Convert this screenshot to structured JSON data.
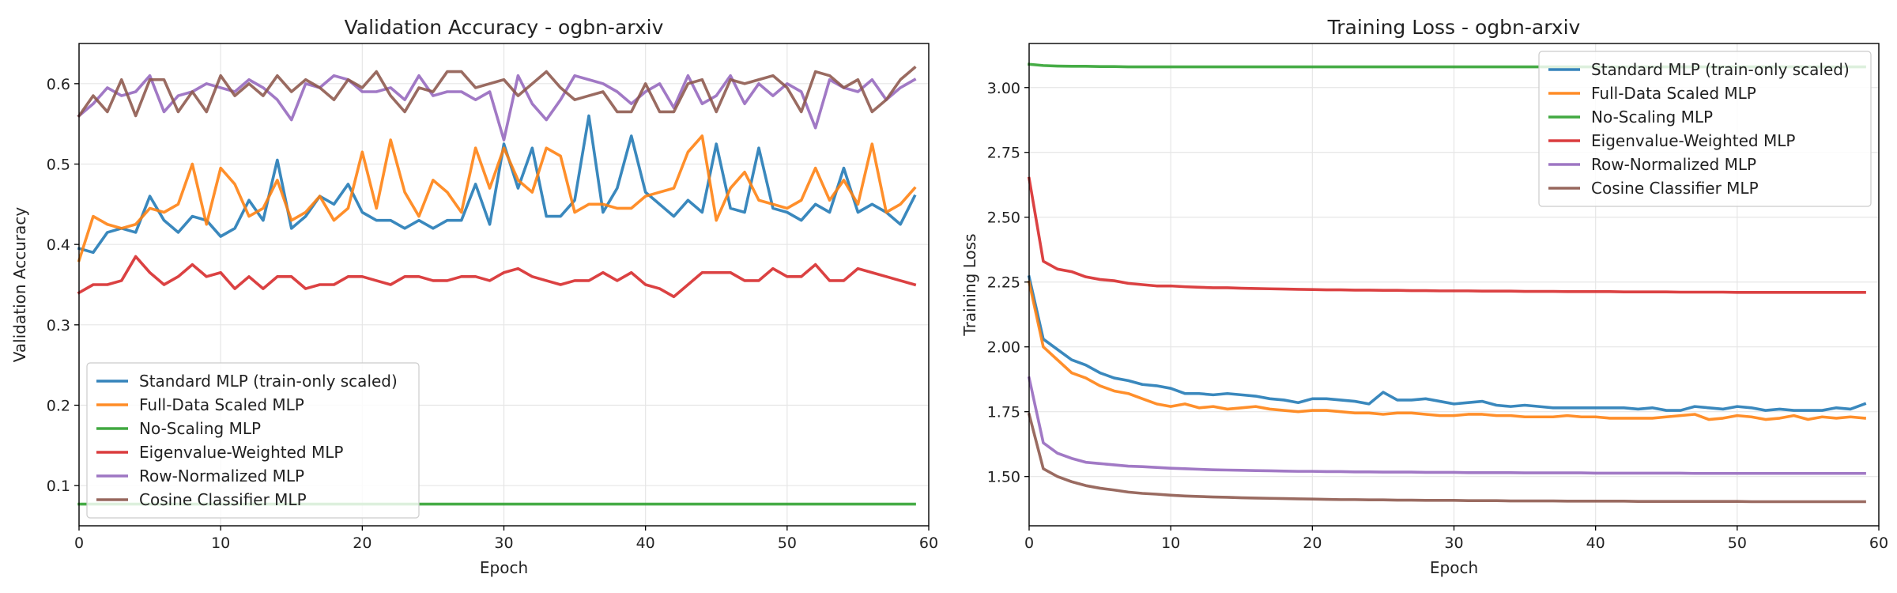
{
  "charts": [
    {
      "id": "val_acc",
      "chart_data": {
        "type": "line",
        "title": "Validation Accuracy - ogbn-arxiv",
        "xlabel": "Epoch",
        "ylabel": "Validation Accuracy",
        "xlim": [
          0,
          60
        ],
        "ylim": [
          0.05,
          0.65
        ],
        "xticks": [
          0,
          10,
          20,
          30,
          40,
          50,
          60
        ],
        "yticks": [
          0.1,
          0.2,
          0.3,
          0.4,
          0.5,
          0.6
        ],
        "ytick_labels": [
          "0.1",
          "0.2",
          "0.3",
          "0.4",
          "0.5",
          "0.6"
        ],
        "grid": true,
        "legend_position": "lower-left",
        "x": [
          0,
          1,
          2,
          3,
          4,
          5,
          6,
          7,
          8,
          9,
          10,
          11,
          12,
          13,
          14,
          15,
          16,
          17,
          18,
          19,
          20,
          21,
          22,
          23,
          24,
          25,
          26,
          27,
          28,
          29,
          30,
          31,
          32,
          33,
          34,
          35,
          36,
          37,
          38,
          39,
          40,
          41,
          42,
          43,
          44,
          45,
          46,
          47,
          48,
          49,
          50,
          51,
          52,
          53,
          54,
          55,
          56,
          57,
          58,
          59
        ],
        "series": [
          {
            "name": "Standard MLP (train-only scaled)",
            "color": "#1f77b4",
            "values": [
              0.395,
              0.39,
              0.415,
              0.42,
              0.415,
              0.46,
              0.43,
              0.415,
              0.435,
              0.43,
              0.41,
              0.42,
              0.455,
              0.43,
              0.505,
              0.42,
              0.435,
              0.46,
              0.45,
              0.475,
              0.44,
              0.43,
              0.43,
              0.42,
              0.43,
              0.42,
              0.43,
              0.43,
              0.475,
              0.425,
              0.525,
              0.47,
              0.52,
              0.435,
              0.435,
              0.455,
              0.56,
              0.44,
              0.47,
              0.535,
              0.465,
              0.45,
              0.435,
              0.455,
              0.44,
              0.525,
              0.445,
              0.44,
              0.52,
              0.445,
              0.44,
              0.43,
              0.45,
              0.44,
              0.495,
              0.44,
              0.45,
              0.44,
              0.425,
              0.46
            ]
          },
          {
            "name": "Full-Data Scaled MLP",
            "color": "#ff7f0e",
            "values": [
              0.38,
              0.435,
              0.425,
              0.42,
              0.425,
              0.445,
              0.44,
              0.45,
              0.5,
              0.425,
              0.495,
              0.475,
              0.435,
              0.445,
              0.48,
              0.43,
              0.44,
              0.46,
              0.43,
              0.445,
              0.515,
              0.445,
              0.53,
              0.465,
              0.435,
              0.48,
              0.465,
              0.44,
              0.52,
              0.47,
              0.52,
              0.48,
              0.465,
              0.52,
              0.51,
              0.44,
              0.45,
              0.45,
              0.445,
              0.445,
              0.46,
              0.465,
              0.47,
              0.515,
              0.535,
              0.43,
              0.47,
              0.49,
              0.455,
              0.45,
              0.445,
              0.455,
              0.495,
              0.455,
              0.48,
              0.45,
              0.525,
              0.44,
              0.45,
              0.47
            ]
          },
          {
            "name": "No-Scaling MLP",
            "color": "#2ca02c",
            "values": [
              0.077,
              0.077,
              0.077,
              0.077,
              0.077,
              0.077,
              0.077,
              0.077,
              0.077,
              0.077,
              0.077,
              0.077,
              0.077,
              0.077,
              0.077,
              0.077,
              0.077,
              0.077,
              0.077,
              0.077,
              0.077,
              0.077,
              0.077,
              0.077,
              0.077,
              0.077,
              0.077,
              0.077,
              0.077,
              0.077,
              0.077,
              0.077,
              0.077,
              0.077,
              0.077,
              0.077,
              0.077,
              0.077,
              0.077,
              0.077,
              0.077,
              0.077,
              0.077,
              0.077,
              0.077,
              0.077,
              0.077,
              0.077,
              0.077,
              0.077,
              0.077,
              0.077,
              0.077,
              0.077,
              0.077,
              0.077,
              0.077,
              0.077,
              0.077,
              0.077
            ]
          },
          {
            "name": "Eigenvalue-Weighted MLP",
            "color": "#d62728",
            "values": [
              0.34,
              0.35,
              0.35,
              0.355,
              0.385,
              0.365,
              0.35,
              0.36,
              0.375,
              0.36,
              0.365,
              0.345,
              0.36,
              0.345,
              0.36,
              0.36,
              0.345,
              0.35,
              0.35,
              0.36,
              0.36,
              0.355,
              0.35,
              0.36,
              0.36,
              0.355,
              0.355,
              0.36,
              0.36,
              0.355,
              0.365,
              0.37,
              0.36,
              0.355,
              0.35,
              0.355,
              0.355,
              0.365,
              0.355,
              0.365,
              0.35,
              0.345,
              0.335,
              0.35,
              0.365,
              0.365,
              0.365,
              0.355,
              0.355,
              0.37,
              0.36,
              0.36,
              0.375,
              0.355,
              0.355,
              0.37,
              0.365,
              0.36,
              0.355,
              0.35
            ]
          },
          {
            "name": "Row-Normalized MLP",
            "color": "#9467bd",
            "values": [
              0.56,
              0.575,
              0.595,
              0.585,
              0.59,
              0.61,
              0.565,
              0.585,
              0.59,
              0.6,
              0.595,
              0.59,
              0.605,
              0.595,
              0.58,
              0.555,
              0.6,
              0.595,
              0.61,
              0.605,
              0.59,
              0.59,
              0.595,
              0.58,
              0.61,
              0.585,
              0.59,
              0.59,
              0.58,
              0.59,
              0.53,
              0.61,
              0.575,
              0.555,
              0.58,
              0.61,
              0.605,
              0.6,
              0.59,
              0.575,
              0.59,
              0.6,
              0.57,
              0.61,
              0.575,
              0.585,
              0.61,
              0.575,
              0.6,
              0.585,
              0.6,
              0.59,
              0.545,
              0.605,
              0.595,
              0.59,
              0.605,
              0.58,
              0.595,
              0.605
            ]
          },
          {
            "name": "Cosine Classifier MLP",
            "color": "#8c564b",
            "values": [
              0.56,
              0.585,
              0.565,
              0.605,
              0.56,
              0.605,
              0.605,
              0.565,
              0.59,
              0.565,
              0.61,
              0.585,
              0.6,
              0.585,
              0.61,
              0.59,
              0.605,
              0.595,
              0.58,
              0.605,
              0.595,
              0.615,
              0.585,
              0.565,
              0.595,
              0.59,
              0.615,
              0.615,
              0.595,
              0.6,
              0.605,
              0.585,
              0.6,
              0.615,
              0.595,
              0.58,
              0.585,
              0.59,
              0.565,
              0.565,
              0.6,
              0.565,
              0.565,
              0.6,
              0.605,
              0.565,
              0.605,
              0.6,
              0.605,
              0.61,
              0.595,
              0.565,
              0.615,
              0.61,
              0.595,
              0.605,
              0.565,
              0.58,
              0.605,
              0.62
            ]
          }
        ]
      }
    },
    {
      "id": "train_loss",
      "chart_data": {
        "type": "line",
        "title": "Training Loss - ogbn-arxiv",
        "xlabel": "Epoch",
        "ylabel": "Training Loss",
        "xlim": [
          0,
          60
        ],
        "ylim": [
          1.31,
          3.17
        ],
        "xticks": [
          0,
          10,
          20,
          30,
          40,
          50,
          60
        ],
        "yticks": [
          1.5,
          1.75,
          2.0,
          2.25,
          2.5,
          2.75,
          3.0
        ],
        "ytick_labels": [
          "1.50",
          "1.75",
          "2.00",
          "2.25",
          "2.50",
          "2.75",
          "3.00"
        ],
        "grid": true,
        "legend_position": "top-right",
        "x": [
          0,
          1,
          2,
          3,
          4,
          5,
          6,
          7,
          8,
          9,
          10,
          11,
          12,
          13,
          14,
          15,
          16,
          17,
          18,
          19,
          20,
          21,
          22,
          23,
          24,
          25,
          26,
          27,
          28,
          29,
          30,
          31,
          32,
          33,
          34,
          35,
          36,
          37,
          38,
          39,
          40,
          41,
          42,
          43,
          44,
          45,
          46,
          47,
          48,
          49,
          50,
          51,
          52,
          53,
          54,
          55,
          56,
          57,
          58,
          59
        ],
        "series": [
          {
            "name": "Standard MLP (train-only scaled)",
            "color": "#1f77b4",
            "values": [
              2.27,
              2.03,
              1.99,
              1.95,
              1.93,
              1.9,
              1.88,
              1.87,
              1.855,
              1.85,
              1.84,
              1.82,
              1.82,
              1.815,
              1.82,
              1.815,
              1.81,
              1.8,
              1.795,
              1.785,
              1.8,
              1.8,
              1.795,
              1.79,
              1.78,
              1.825,
              1.795,
              1.795,
              1.8,
              1.79,
              1.78,
              1.785,
              1.79,
              1.775,
              1.77,
              1.775,
              1.77,
              1.765,
              1.765,
              1.765,
              1.765,
              1.765,
              1.765,
              1.76,
              1.765,
              1.755,
              1.755,
              1.77,
              1.765,
              1.76,
              1.77,
              1.765,
              1.755,
              1.76,
              1.755,
              1.755,
              1.755,
              1.765,
              1.76,
              1.78
            ]
          },
          {
            "name": "Full-Data Scaled MLP",
            "color": "#ff7f0e",
            "values": [
              2.25,
              2.0,
              1.95,
              1.9,
              1.88,
              1.85,
              1.83,
              1.82,
              1.8,
              1.78,
              1.77,
              1.78,
              1.765,
              1.77,
              1.76,
              1.765,
              1.77,
              1.76,
              1.755,
              1.75,
              1.755,
              1.755,
              1.75,
              1.745,
              1.745,
              1.74,
              1.745,
              1.745,
              1.74,
              1.735,
              1.735,
              1.74,
              1.74,
              1.735,
              1.735,
              1.73,
              1.73,
              1.73,
              1.735,
              1.73,
              1.73,
              1.725,
              1.725,
              1.725,
              1.725,
              1.73,
              1.735,
              1.74,
              1.72,
              1.725,
              1.735,
              1.73,
              1.72,
              1.725,
              1.735,
              1.72,
              1.73,
              1.725,
              1.73,
              1.725
            ]
          },
          {
            "name": "No-Scaling MLP",
            "color": "#2ca02c",
            "values": [
              3.09,
              3.085,
              3.083,
              3.082,
              3.082,
              3.081,
              3.081,
              3.08,
              3.08,
              3.08,
              3.08,
              3.08,
              3.08,
              3.08,
              3.08,
              3.08,
              3.08,
              3.08,
              3.08,
              3.08,
              3.08,
              3.08,
              3.08,
              3.08,
              3.08,
              3.08,
              3.08,
              3.08,
              3.08,
              3.08,
              3.08,
              3.08,
              3.08,
              3.08,
              3.08,
              3.08,
              3.08,
              3.08,
              3.08,
              3.08,
              3.08,
              3.08,
              3.08,
              3.08,
              3.08,
              3.08,
              3.08,
              3.08,
              3.08,
              3.08,
              3.08,
              3.08,
              3.08,
              3.08,
              3.08,
              3.08,
              3.08,
              3.08,
              3.08,
              3.08
            ]
          },
          {
            "name": "Eigenvalue-Weighted MLP",
            "color": "#d62728",
            "values": [
              2.65,
              2.33,
              2.3,
              2.29,
              2.27,
              2.26,
              2.255,
              2.245,
              2.24,
              2.235,
              2.235,
              2.232,
              2.23,
              2.228,
              2.228,
              2.226,
              2.225,
              2.224,
              2.223,
              2.222,
              2.221,
              2.22,
              2.22,
              2.219,
              2.219,
              2.218,
              2.218,
              2.217,
              2.217,
              2.216,
              2.216,
              2.216,
              2.215,
              2.215,
              2.215,
              2.214,
              2.214,
              2.214,
              2.213,
              2.213,
              2.213,
              2.213,
              2.212,
              2.212,
              2.212,
              2.212,
              2.211,
              2.211,
              2.211,
              2.211,
              2.21,
              2.21,
              2.21,
              2.21,
              2.21,
              2.21,
              2.21,
              2.21,
              2.21,
              2.21
            ]
          },
          {
            "name": "Row-Normalized MLP",
            "color": "#9467bd",
            "values": [
              1.88,
              1.63,
              1.59,
              1.57,
              1.555,
              1.55,
              1.545,
              1.54,
              1.538,
              1.535,
              1.532,
              1.53,
              1.528,
              1.526,
              1.525,
              1.524,
              1.523,
              1.522,
              1.521,
              1.52,
              1.52,
              1.519,
              1.519,
              1.518,
              1.518,
              1.517,
              1.517,
              1.517,
              1.516,
              1.516,
              1.516,
              1.515,
              1.515,
              1.515,
              1.515,
              1.514,
              1.514,
              1.514,
              1.514,
              1.514,
              1.513,
              1.513,
              1.513,
              1.513,
              1.513,
              1.513,
              1.513,
              1.512,
              1.512,
              1.512,
              1.512,
              1.512,
              1.512,
              1.512,
              1.512,
              1.512,
              1.512,
              1.512,
              1.512,
              1.512
            ]
          },
          {
            "name": "Cosine Classifier MLP",
            "color": "#8c564b",
            "values": [
              1.74,
              1.53,
              1.5,
              1.48,
              1.465,
              1.455,
              1.448,
              1.44,
              1.435,
              1.432,
              1.428,
              1.425,
              1.423,
              1.421,
              1.42,
              1.418,
              1.417,
              1.416,
              1.415,
              1.414,
              1.413,
              1.412,
              1.411,
              1.411,
              1.41,
              1.41,
              1.409,
              1.409,
              1.408,
              1.408,
              1.408,
              1.407,
              1.407,
              1.407,
              1.406,
              1.406,
              1.406,
              1.406,
              1.405,
              1.405,
              1.405,
              1.405,
              1.405,
              1.404,
              1.404,
              1.404,
              1.404,
              1.404,
              1.404,
              1.404,
              1.404,
              1.403,
              1.403,
              1.403,
              1.403,
              1.403,
              1.403,
              1.403,
              1.403,
              1.403
            ]
          }
        ]
      }
    }
  ]
}
